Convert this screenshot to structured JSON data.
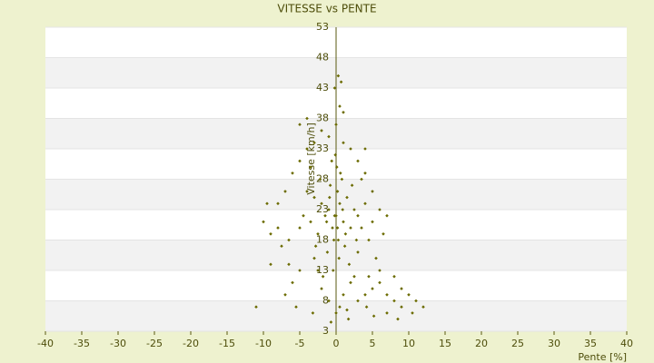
{
  "chart_data": {
    "type": "scatter",
    "title": "VITESSE vs PENTE",
    "x_label": "Pente [%]",
    "y_label": "Vitesse [km/h]",
    "xlim": [
      -40,
      40
    ],
    "xticks": [
      -40,
      -35,
      -30,
      -25,
      -20,
      -15,
      -10,
      -5,
      0,
      5,
      10,
      15,
      20,
      25,
      30,
      35,
      40
    ],
    "ylim": [
      3,
      53
    ],
    "yticks": [
      3,
      8,
      13,
      18,
      23,
      28,
      33,
      38,
      43,
      48,
      53
    ],
    "grid": true,
    "series": [
      {
        "color": "#6b6b00",
        "x": [
          0,
          0.5,
          -0.5,
          1,
          -1,
          0.2,
          -0.3,
          1.5,
          -1.5,
          2,
          -2,
          0.8,
          -0.8,
          2.5,
          -2.5,
          3,
          -3,
          1.2,
          -1.2,
          0.4,
          -0.4,
          1.8,
          -1.8,
          0.1,
          -0.1,
          0.6,
          -0.6,
          3.5,
          -3.5,
          4,
          -4,
          2.2,
          -2.2,
          4.5,
          -4.5,
          5,
          -5,
          3,
          -3,
          2,
          -2,
          1,
          -1,
          0.5,
          0,
          1.5,
          3,
          4,
          5,
          6,
          7,
          8,
          9,
          10,
          11,
          12,
          7,
          9,
          10.5,
          6,
          5.5,
          4.5,
          -5,
          -6,
          -7,
          -5.5,
          -6.5,
          -8,
          -9,
          -9.5,
          -10,
          -7,
          -6,
          -5,
          -4,
          -3,
          -2,
          -1,
          0,
          1,
          2,
          3,
          4,
          5,
          6,
          7,
          -11,
          -4,
          -5,
          0.5,
          0.3,
          0.7,
          -0.2,
          1,
          4,
          -8,
          -7.5,
          -3.5,
          3.5,
          -2.5,
          2.5,
          1.3,
          -1.3,
          0.9,
          -0.9,
          0.2,
          -0.2,
          0.3,
          2.8,
          -2.8,
          6.5,
          -6.5,
          8,
          -9,
          4.2,
          -3.2,
          1.7,
          -0.7,
          5.2,
          8.5
        ],
        "values": [
          22,
          24,
          20,
          21,
          23,
          26,
          18,
          25,
          22,
          20,
          24,
          28,
          27,
          23,
          19,
          22,
          25,
          17,
          16,
          15,
          13,
          14,
          12,
          30,
          32,
          29,
          31,
          20,
          21,
          24,
          26,
          27,
          28,
          18,
          22,
          21,
          20,
          16,
          15,
          11,
          10,
          9,
          8,
          7,
          6,
          6.5,
          8,
          9,
          10,
          11,
          9,
          8,
          7,
          9,
          8,
          7,
          6,
          10,
          6,
          13,
          15,
          12,
          13,
          11,
          9,
          7,
          14,
          20,
          19,
          24,
          21,
          26,
          29,
          31,
          33,
          34,
          36,
          35,
          37,
          34,
          33,
          31,
          29,
          26,
          23,
          22,
          7,
          38,
          37,
          40,
          45,
          44,
          43,
          39,
          33,
          24,
          17,
          30,
          28,
          13,
          12,
          19,
          21,
          23,
          25,
          20,
          22,
          18,
          18,
          17,
          19,
          18,
          12,
          14,
          7,
          6,
          5,
          4.5,
          5.5,
          5
        ]
      }
    ]
  }
}
